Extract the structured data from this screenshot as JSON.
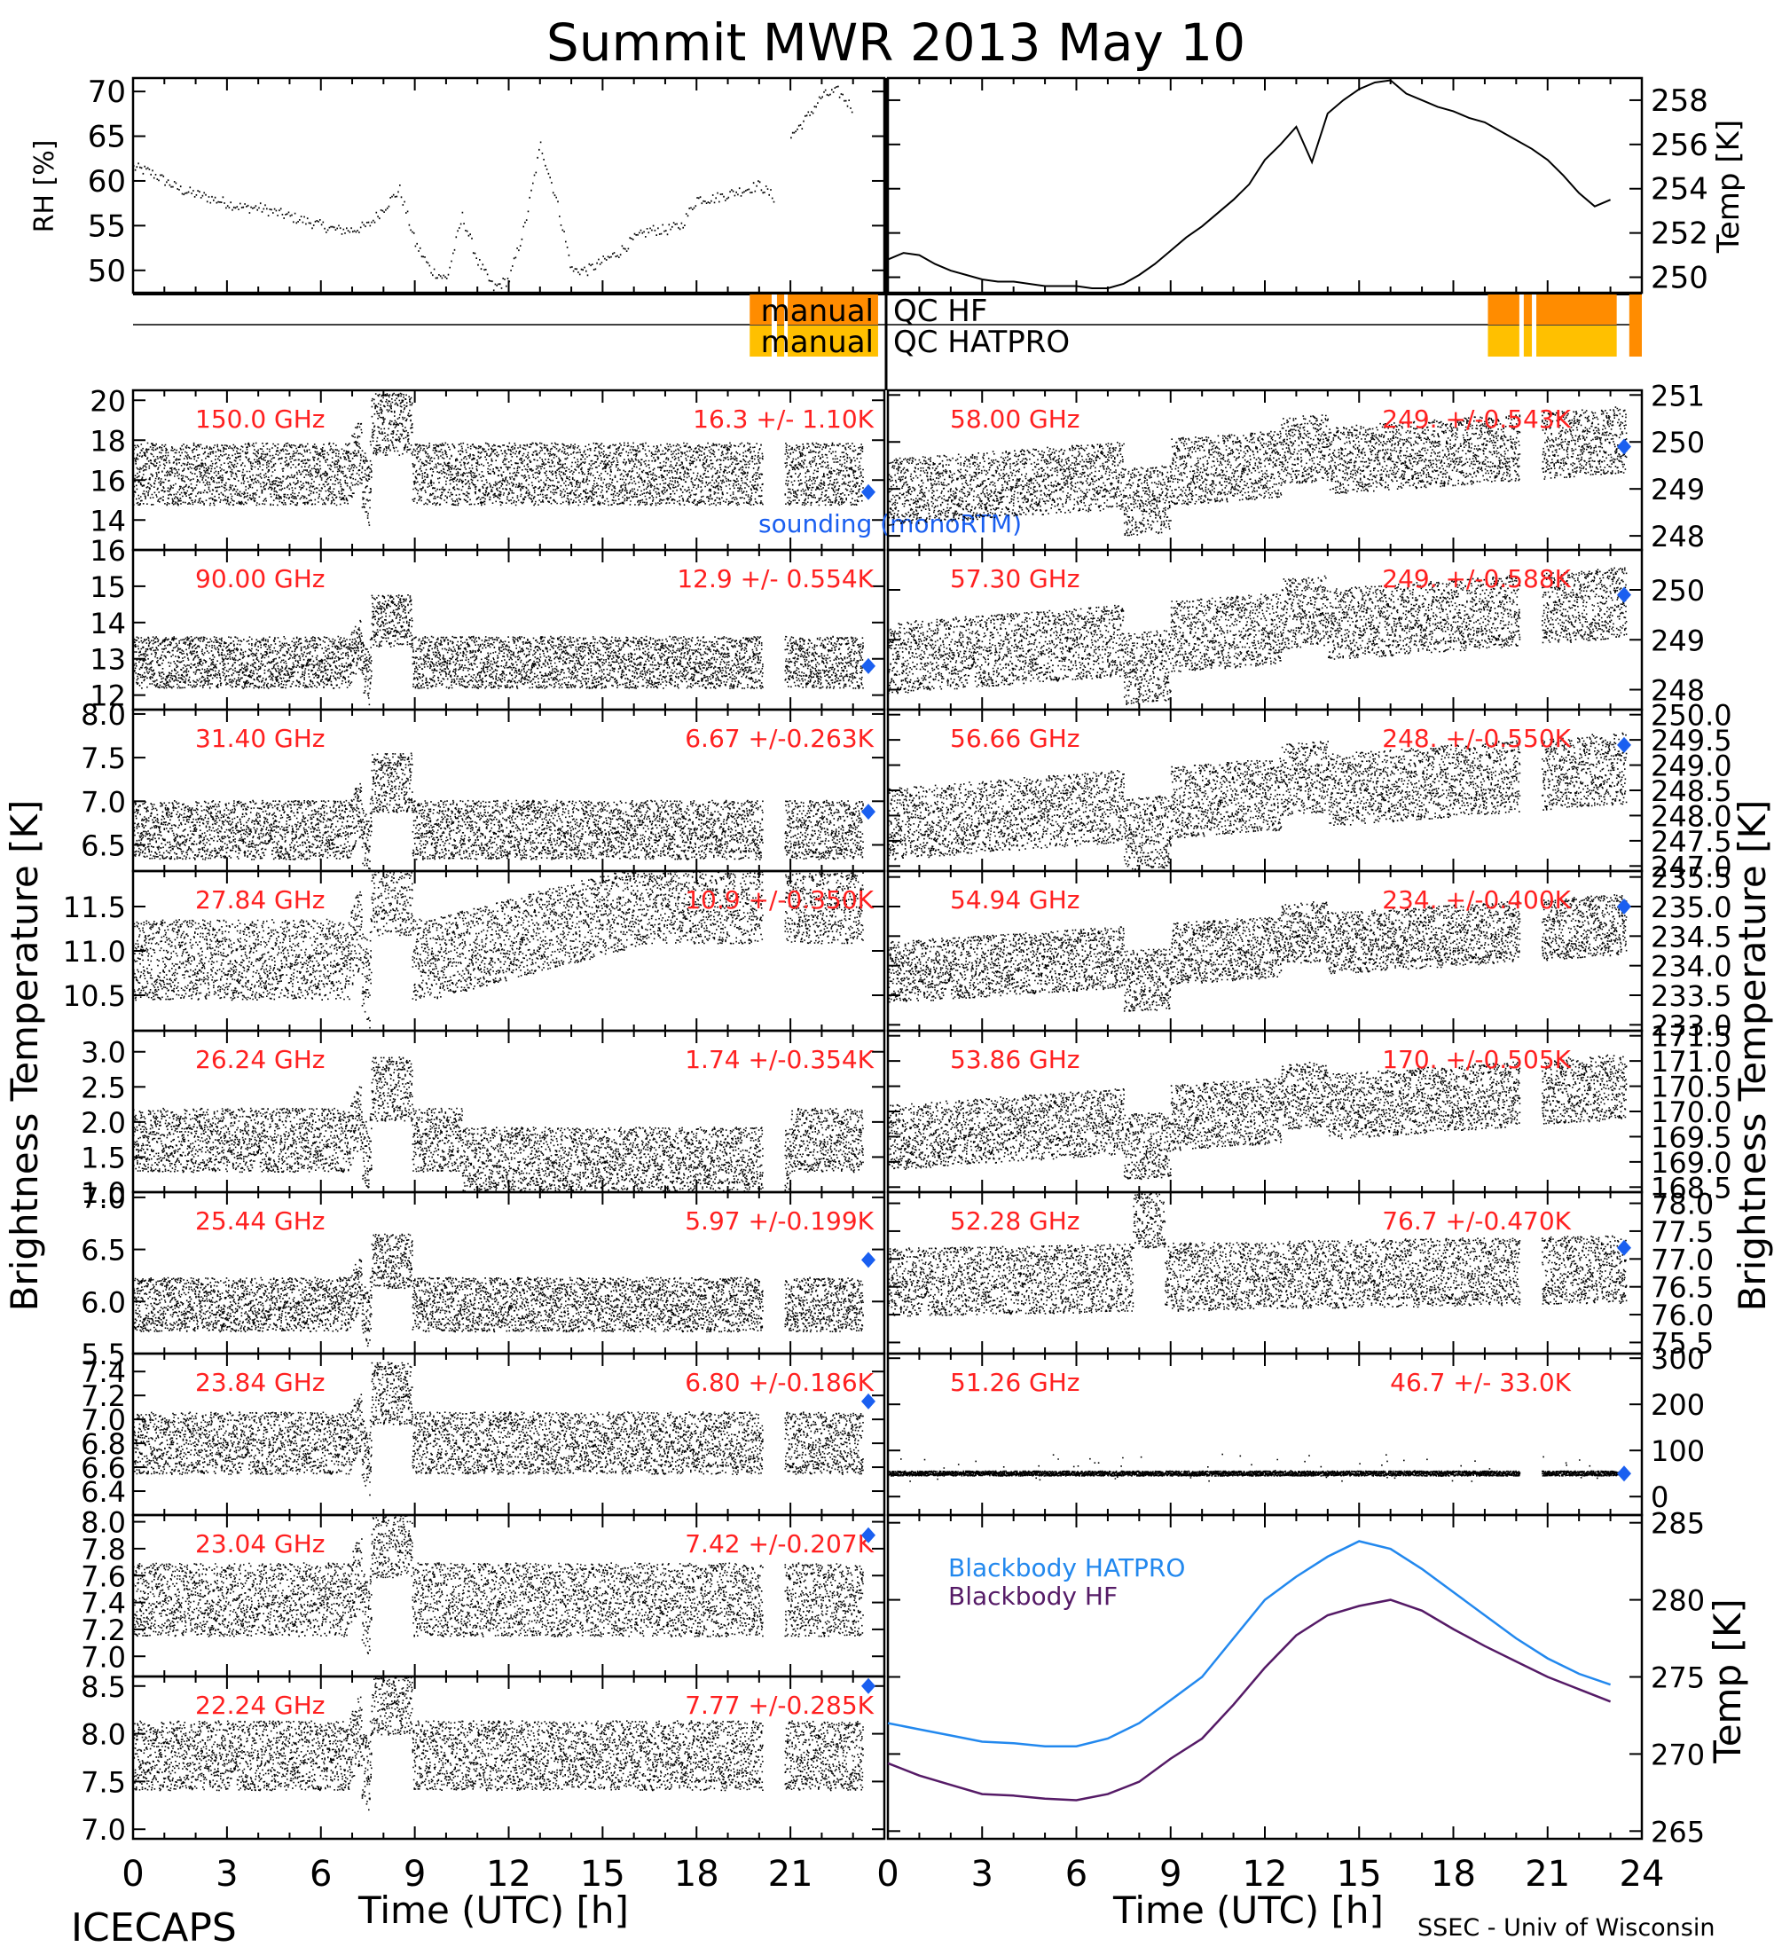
{
  "title": "Summit MWR 2013 May 10",
  "footer": {
    "left": "ICECAPS",
    "right": "SSEC - Univ of Wisconsin",
    "xlabel": "Time (UTC) [h]"
  },
  "colors": {
    "trace": "#000000",
    "stats": "#ff2020",
    "sounding": "#1a5ff0",
    "bb_hatpro": "#2288ee",
    "bb_hf": "#551a66",
    "qc_hf": "#ff8c00",
    "qc_hatpro": "#ffc000"
  },
  "left_axis_label": "Brightness Temperature [K]",
  "right_axis_label": "Brightness Temperature [K]",
  "chart_data": [
    {
      "id": "rh",
      "type": "line",
      "ylabel": "RH [%]",
      "ylim": [
        47.5,
        71.5
      ],
      "yticks": [
        "50",
        "55",
        "60",
        "65",
        "70"
      ],
      "x": [
        0,
        0.5,
        1,
        1.5,
        2,
        2.5,
        3,
        3.5,
        4,
        4.5,
        5,
        5.5,
        6,
        6.5,
        7,
        7.5,
        8,
        8.5,
        9,
        9.5,
        10,
        10.5,
        11,
        11.5,
        12,
        12.5,
        13,
        13.5,
        14,
        14.5,
        15,
        15.5,
        16,
        16.5,
        17,
        17.5,
        18,
        18.5,
        19,
        19.5,
        20,
        20.5,
        21,
        21.5,
        22,
        22.5,
        23
      ],
      "y": [
        61.5,
        61,
        60,
        59,
        58.5,
        58,
        57.5,
        57,
        57,
        56.5,
        56,
        55.5,
        55,
        54.5,
        54.5,
        55,
        57,
        59,
        53,
        50,
        49,
        56,
        51,
        48,
        49,
        55,
        64,
        58,
        50,
        50,
        51,
        52,
        53.5,
        54.5,
        54.5,
        55,
        58,
        58,
        58.5,
        59,
        59.5,
        58,
        65,
        67,
        69.5,
        70,
        68
      ]
    },
    {
      "id": "temp",
      "type": "line",
      "ylabel": "Temp [K]",
      "ylim": [
        249.3,
        259
      ],
      "yticks": [
        "250",
        "252",
        "254",
        "256",
        "258"
      ],
      "x": [
        0,
        0.5,
        1,
        1.5,
        2,
        2.5,
        3,
        3.5,
        4,
        4.5,
        5,
        5.5,
        6,
        6.5,
        7,
        7.5,
        8,
        8.5,
        9,
        9.5,
        10,
        10.5,
        11,
        11.5,
        12,
        12.5,
        13,
        13.5,
        14,
        14.5,
        15,
        15.5,
        16,
        16.5,
        17,
        17.5,
        18,
        18.5,
        19,
        19.5,
        20,
        20.5,
        21,
        21.5,
        22,
        22.5,
        23
      ],
      "y": [
        250.8,
        251.1,
        251.0,
        250.6,
        250.3,
        250.1,
        249.9,
        249.8,
        249.8,
        249.7,
        249.6,
        249.6,
        249.6,
        249.5,
        249.5,
        249.7,
        250.1,
        250.6,
        251.2,
        251.8,
        252.3,
        252.9,
        253.5,
        254.2,
        255.3,
        256.0,
        256.8,
        255.2,
        257.4,
        258.0,
        258.5,
        258.8,
        258.9,
        258.3,
        258.0,
        257.7,
        257.5,
        257.2,
        257.0,
        256.6,
        256.2,
        255.8,
        255.3,
        254.6,
        253.8,
        253.2,
        253.5
      ]
    },
    {
      "id": "qc",
      "type": "table",
      "rows": [
        {
          "label": "manual",
          "tag": "QC HF"
        },
        {
          "label": "manual",
          "tag": "QC HATPRO"
        }
      ]
    },
    {
      "id": "left_channels",
      "type": "scatter",
      "xlabel": "Time (UTC) [h]",
      "xlim": [
        0,
        24
      ],
      "xticks": [
        "0",
        "3",
        "6",
        "9",
        "12",
        "15",
        "18",
        "21",
        ""
      ],
      "sounding_label": "sounding (monoRTM)",
      "series": [
        {
          "freq": "150.0 GHz",
          "stats": "16.3 +/- 1.10K",
          "base": 16.3,
          "noise": 1.2,
          "ylim": [
            12.5,
            20.5
          ],
          "yticks": [
            "14",
            "16",
            "18",
            "20"
          ],
          "sounding": 15.4
        },
        {
          "freq": "90.00 GHz",
          "stats": "12.9 +/- 0.554K",
          "base": 12.9,
          "noise": 0.55,
          "ylim": [
            11.6,
            16
          ],
          "yticks": [
            "12",
            "13",
            "14",
            "15",
            "16"
          ],
          "sounding": 12.8
        },
        {
          "freq": "31.40 GHz",
          "stats": "6.67 +/-0.263K",
          "base": 6.67,
          "noise": 0.26,
          "ylim": [
            6.2,
            8.05
          ],
          "yticks": [
            "6.5",
            "7.0",
            "7.5",
            "8.0"
          ],
          "sounding": 6.88
        },
        {
          "freq": "27.84 GHz",
          "stats": "10.9 +/-0.350K",
          "base": 10.9,
          "noise": 0.35,
          "ylim": [
            10.1,
            11.9
          ],
          "yticks": [
            "10.5",
            "11.0",
            "11.5"
          ],
          "sounding": 0
        },
        {
          "freq": "26.24 GHz",
          "stats": "1.74 +/-0.354K",
          "base": 1.74,
          "noise": 0.35,
          "ylim": [
            1.0,
            3.3
          ],
          "yticks": [
            "1.0",
            "1.5",
            "2.0",
            "2.5",
            "3.0"
          ],
          "sounding": 0
        },
        {
          "freq": "25.44 GHz",
          "stats": "5.97 +/-0.199K",
          "base": 5.97,
          "noise": 0.2,
          "ylim": [
            5.5,
            7.05
          ],
          "yticks": [
            "5.5",
            "6.0",
            "6.5",
            "7.0"
          ],
          "sounding": 6.4
        },
        {
          "freq": "23.84 GHz",
          "stats": "6.80 +/-0.186K",
          "base": 6.8,
          "noise": 0.2,
          "ylim": [
            6.2,
            7.55
          ],
          "yticks": [
            "6.4",
            "6.6",
            "6.8",
            "7.0",
            "7.2",
            "7.4"
          ],
          "sounding": 7.15
        },
        {
          "freq": "23.04 GHz",
          "stats": "7.42 +/-0.207K",
          "base": 7.42,
          "noise": 0.21,
          "ylim": [
            6.85,
            8.05
          ],
          "yticks": [
            "7.0",
            "7.2",
            "7.4",
            "7.6",
            "7.8",
            "8.0"
          ],
          "sounding": 7.9
        },
        {
          "freq": "22.24 GHz",
          "stats": "7.77 +/-0.285K",
          "base": 7.77,
          "noise": 0.28,
          "ylim": [
            6.9,
            8.6
          ],
          "yticks": [
            "7.0",
            "7.5",
            "8.0",
            "8.5"
          ],
          "sounding": 8.5
        }
      ]
    },
    {
      "id": "right_channels",
      "type": "scatter",
      "xlabel": "Time (UTC) [h]",
      "xlim": [
        0,
        24
      ],
      "xticks": [
        "0",
        "3",
        "6",
        "9",
        "12",
        "15",
        "18",
        "21",
        "24"
      ],
      "series": [
        {
          "freq": "58.00 GHz",
          "stats": "249. +/-0.543K",
          "base": 249.5,
          "noise": 0.55,
          "ylim": [
            247.7,
            251.1
          ],
          "yticks": [
            "248",
            "249",
            "250",
            "251"
          ],
          "sounding": 249.9
        },
        {
          "freq": "57.30 GHz",
          "stats": "249. +/-0.588K",
          "base": 249.2,
          "noise": 0.55,
          "ylim": [
            247.6,
            250.8
          ],
          "yticks": [
            "248",
            "249",
            "250"
          ],
          "sounding": 249.9
        },
        {
          "freq": "56.66 GHz",
          "stats": "248. +/-0.550K",
          "base": 248.4,
          "noise": 0.55,
          "ylim": [
            246.9,
            250.1
          ],
          "yticks": [
            "247.0",
            "247.5",
            "248.0",
            "248.5",
            "249.0",
            "249.5",
            "250.0"
          ],
          "sounding": 249.4
        },
        {
          "freq": "54.94 GHz",
          "stats": "234. +/-0.400K",
          "base": 234.3,
          "noise": 0.4,
          "ylim": [
            232.9,
            235.6
          ],
          "yticks": [
            "233.0",
            "233.5",
            "234.0",
            "234.5",
            "235.0",
            "235.5"
          ],
          "sounding": 235.0
        },
        {
          "freq": "53.86 GHz",
          "stats": "170. +/-0.505K",
          "base": 170.0,
          "noise": 0.5,
          "ylim": [
            168.4,
            171.6
          ],
          "yticks": [
            "168.5",
            "169.0",
            "169.5",
            "170.0",
            "170.5",
            "171.0",
            "171.5"
          ],
          "sounding": 0
        },
        {
          "freq": "52.28 GHz",
          "stats": "76.7 +/-0.470K",
          "base": 76.7,
          "noise": 0.47,
          "ylim": [
            75.3,
            78.2
          ],
          "yticks": [
            "75.5",
            "76.0",
            "76.5",
            "77.0",
            "77.5",
            "78.0"
          ],
          "sounding": 77.2
        },
        {
          "freq": "51.26 GHz",
          "stats": "46.7 +/- 33.0K",
          "base": 50,
          "noise": 4,
          "ylim": [
            -40,
            310
          ],
          "yticks": [
            "0",
            "100",
            "200",
            "300"
          ],
          "sounding": 50
        }
      ]
    },
    {
      "id": "blackbody",
      "type": "line",
      "ylabel": "Temp [K]",
      "xlim": [
        0,
        24
      ],
      "ylim": [
        264.5,
        285.5
      ],
      "yticks": [
        "265",
        "270",
        "275",
        "280",
        "285"
      ],
      "legend": [
        "Blackbody HATPRO",
        "Blackbody HF"
      ],
      "x": [
        0,
        1,
        2,
        3,
        4,
        5,
        6,
        7,
        8,
        9,
        10,
        11,
        12,
        13,
        14,
        15,
        16,
        17,
        18,
        19,
        20,
        21,
        22,
        23
      ],
      "series": [
        {
          "name": "Blackbody HATPRO",
          "values": [
            272.0,
            271.6,
            271.2,
            270.8,
            270.7,
            270.5,
            270.5,
            271.0,
            272.0,
            273.5,
            275.0,
            277.5,
            280.0,
            281.5,
            282.8,
            283.8,
            283.3,
            282.0,
            280.5,
            279.0,
            277.5,
            276.2,
            275.2,
            274.5
          ]
        },
        {
          "name": "Blackbody HF",
          "values": [
            269.4,
            268.6,
            268.0,
            267.4,
            267.3,
            267.1,
            267.0,
            267.4,
            268.2,
            269.7,
            271.0,
            273.2,
            275.6,
            277.7,
            279.0,
            279.6,
            280.0,
            279.3,
            278.1,
            277.0,
            276.0,
            275.0,
            274.2,
            273.4
          ]
        }
      ]
    }
  ]
}
